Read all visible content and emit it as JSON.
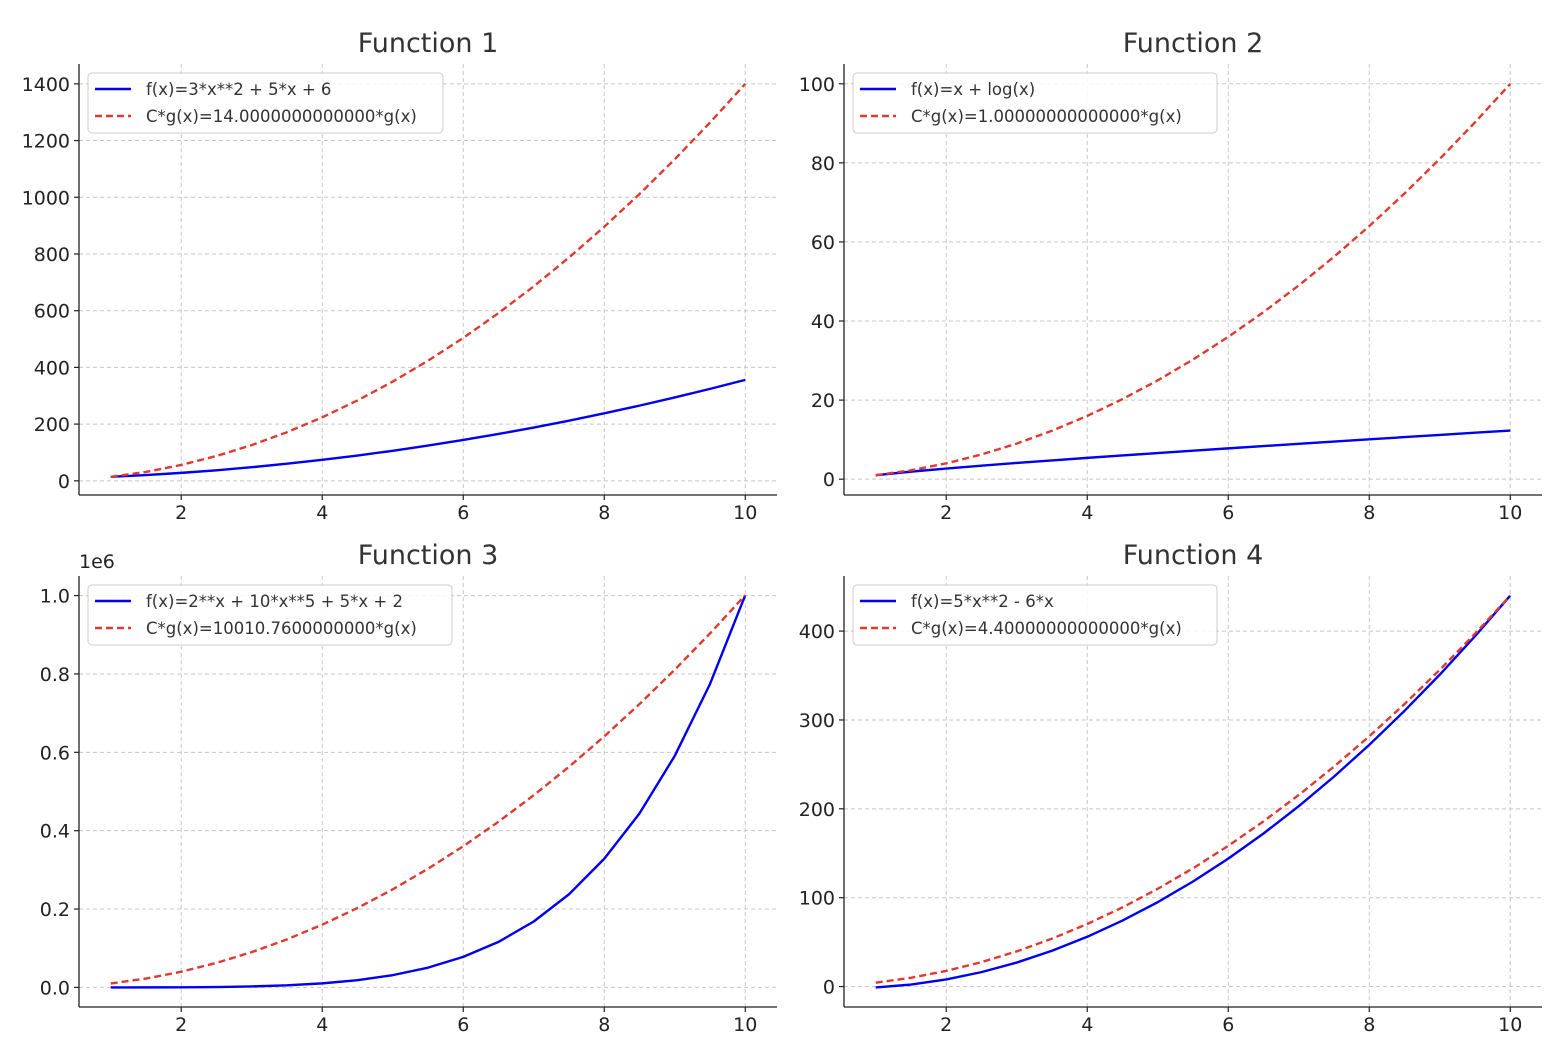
{
  "colors": {
    "f_line": "#0000ee",
    "cg_line": "#e03a2f",
    "grid": "#c8c8c8",
    "axis": "#222222",
    "legend_border": "#cccccc"
  },
  "chart_data": [
    {
      "type": "line",
      "title": "Function 1",
      "xlim": [
        0.55,
        10.45
      ],
      "ylim": [
        -50,
        1470
      ],
      "xticks": [
        2,
        4,
        6,
        8,
        10
      ],
      "yticks": [
        0,
        200,
        400,
        600,
        800,
        1000,
        1200,
        1400
      ],
      "ytick_labels": [
        "0",
        "200",
        "400",
        "600",
        "800",
        "1000",
        "1200",
        "1400"
      ],
      "offset_label": "",
      "grid": true,
      "legend_position": "upper-left",
      "series": [
        {
          "name": "f(x)=3*x**2 + 5*x + 6",
          "style": "solid",
          "color": "#0000ee",
          "x": [
            1,
            1.5,
            2,
            2.5,
            3,
            3.5,
            4,
            4.5,
            5,
            5.5,
            6,
            6.5,
            7,
            7.5,
            8,
            8.5,
            9,
            9.5,
            10
          ],
          "y": [
            14,
            20.25,
            28,
            37.25,
            48,
            60.25,
            74,
            89.25,
            106,
            124.25,
            144,
            165.25,
            188,
            212.25,
            238,
            265.25,
            294,
            324.25,
            356
          ]
        },
        {
          "name": "C*g(x)=14.0000000000000*g(x)",
          "style": "dashed",
          "color": "#e03a2f",
          "x": [
            1,
            1.5,
            2,
            2.5,
            3,
            3.5,
            4,
            4.5,
            5,
            5.5,
            6,
            6.5,
            7,
            7.5,
            8,
            8.5,
            9,
            9.5,
            10
          ],
          "y": [
            14,
            31.5,
            56,
            87.5,
            126,
            171.5,
            224,
            283.5,
            350,
            423.5,
            504,
            591.5,
            686,
            787.5,
            896,
            1011.5,
            1134,
            1263.5,
            1400
          ]
        }
      ]
    },
    {
      "type": "line",
      "title": "Function 2",
      "xlim": [
        0.55,
        10.45
      ],
      "ylim": [
        -4,
        105
      ],
      "xticks": [
        2,
        4,
        6,
        8,
        10
      ],
      "yticks": [
        0,
        20,
        40,
        60,
        80,
        100
      ],
      "ytick_labels": [
        "0",
        "20",
        "40",
        "60",
        "80",
        "100"
      ],
      "offset_label": "",
      "grid": true,
      "legend_position": "upper-left",
      "series": [
        {
          "name": "f(x)=x + log(x)",
          "style": "solid",
          "color": "#0000ee",
          "x": [
            1,
            1.5,
            2,
            2.5,
            3,
            3.5,
            4,
            4.5,
            5,
            5.5,
            6,
            6.5,
            7,
            7.5,
            8,
            8.5,
            9,
            9.5,
            10
          ],
          "y": [
            1,
            1.91,
            2.69,
            3.42,
            4.1,
            4.75,
            5.39,
            6,
            6.61,
            7.2,
            7.79,
            8.37,
            8.95,
            9.51,
            10.08,
            10.64,
            11.2,
            11.75,
            12.3
          ]
        },
        {
          "name": "C*g(x)=1.00000000000000*g(x)",
          "style": "dashed",
          "color": "#e03a2f",
          "x": [
            1,
            1.5,
            2,
            2.5,
            3,
            3.5,
            4,
            4.5,
            5,
            5.5,
            6,
            6.5,
            7,
            7.5,
            8,
            8.5,
            9,
            9.5,
            10
          ],
          "y": [
            1,
            2.25,
            4,
            6.25,
            9,
            12.25,
            16,
            20.25,
            25,
            30.25,
            36,
            42.25,
            49,
            56.25,
            64,
            72.25,
            81,
            90.25,
            100
          ]
        }
      ]
    },
    {
      "type": "line",
      "title": "Function 3",
      "xlim": [
        0.55,
        10.45
      ],
      "ylim": [
        -0.05,
        1.05
      ],
      "xticks": [
        2,
        4,
        6,
        8,
        10
      ],
      "yticks": [
        0,
        0.2,
        0.4,
        0.6,
        0.8,
        1.0
      ],
      "ytick_labels": [
        "0.0",
        "0.2",
        "0.4",
        "0.6",
        "0.8",
        "1.0"
      ],
      "offset_label": "1e6",
      "grid": true,
      "legend_position": "upper-left",
      "series": [
        {
          "name": "f(x)=2**x + 10*x**5 + 5*x + 2",
          "style": "solid",
          "color": "#0000ee",
          "x": [
            1,
            1.5,
            2,
            2.5,
            3,
            3.5,
            4,
            4.5,
            5,
            5.5,
            6,
            6.5,
            7,
            7.5,
            8,
            8.5,
            9,
            9.5,
            10
          ],
          "y": [
            1.9e-05,
            8.7e-05,
            0.000338,
            0.000995,
            0.002457,
            0.005343,
            0.010286,
            0.018491,
            0.03133,
            0.050402,
            0.077828,
            0.116117,
            0.168248,
            0.237743,
            0.32834,
            0.444115,
            0.591001,
            0.774448,
            1.001076
          ]
        },
        {
          "name": "C*g(x)=10010.7600000000*g(x)",
          "style": "dashed",
          "color": "#e03a2f",
          "x": [
            1,
            1.5,
            2,
            2.5,
            3,
            3.5,
            4,
            4.5,
            5,
            5.5,
            6,
            6.5,
            7,
            7.5,
            8,
            8.5,
            9,
            9.5,
            10
          ],
          "y": [
            0.01001,
            0.022524,
            0.040043,
            0.062567,
            0.090097,
            0.122632,
            0.160172,
            0.202718,
            0.250269,
            0.302826,
            0.360387,
            0.422955,
            0.490527,
            0.563105,
            0.640689,
            0.723277,
            0.810872,
            0.903471,
            1.001076
          ]
        }
      ]
    },
    {
      "type": "line",
      "title": "Function 4",
      "xlim": [
        0.55,
        10.45
      ],
      "ylim": [
        -23,
        462
      ],
      "xticks": [
        2,
        4,
        6,
        8,
        10
      ],
      "yticks": [
        0,
        100,
        200,
        300,
        400
      ],
      "ytick_labels": [
        "0",
        "100",
        "200",
        "300",
        "400"
      ],
      "offset_label": "",
      "grid": true,
      "legend_position": "upper-left",
      "series": [
        {
          "name": "f(x)=5*x**2 - 6*x",
          "style": "solid",
          "color": "#0000ee",
          "x": [
            1,
            1.5,
            2,
            2.5,
            3,
            3.5,
            4,
            4.5,
            5,
            5.5,
            6,
            6.5,
            7,
            7.5,
            8,
            8.5,
            9,
            9.5,
            10
          ],
          "y": [
            -1,
            2.25,
            8,
            16.25,
            27,
            40.25,
            56,
            74.25,
            95,
            118.25,
            144,
            172.25,
            203,
            236.25,
            272,
            310.25,
            351,
            394.25,
            440
          ]
        },
        {
          "name": "C*g(x)=4.40000000000000*g(x)",
          "style": "dashed",
          "color": "#e03a2f",
          "x": [
            1,
            1.5,
            2,
            2.5,
            3,
            3.5,
            4,
            4.5,
            5,
            5.5,
            6,
            6.5,
            7,
            7.5,
            8,
            8.5,
            9,
            9.5,
            10
          ],
          "y": [
            4.4,
            9.9,
            17.6,
            27.5,
            39.6,
            53.9,
            70.4,
            89.1,
            110,
            133.1,
            158.4,
            185.9,
            215.6,
            247.5,
            281.6,
            317.9,
            356.4,
            397.1,
            440
          ]
        }
      ]
    }
  ]
}
